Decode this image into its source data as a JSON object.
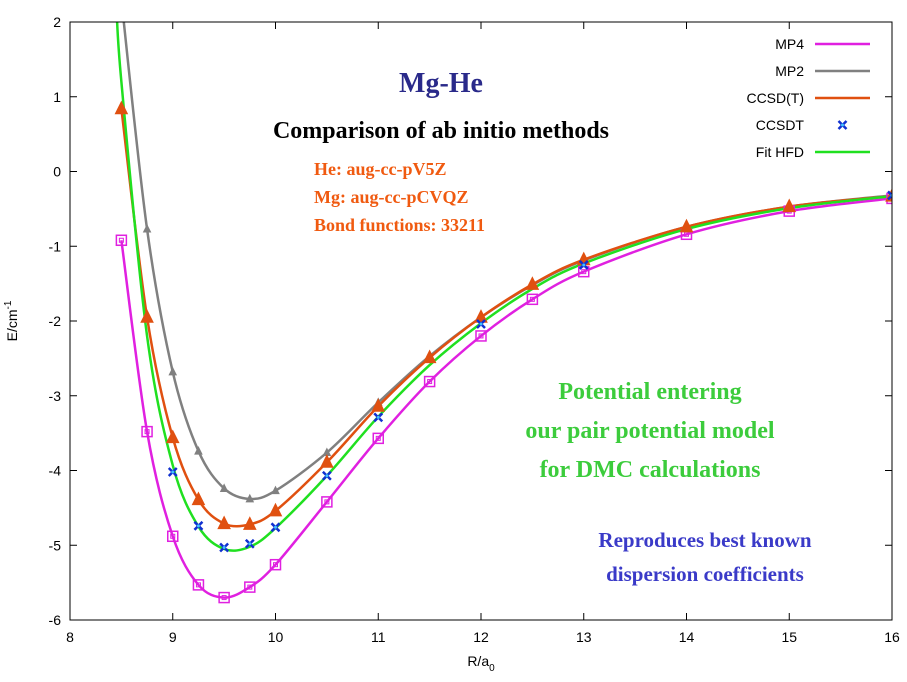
{
  "chart_data": {
    "type": "line",
    "title": "Mg-He",
    "subtitle": "Comparison of ab initio methods",
    "xlabel": "R/a",
    "xlabel_sub": "0",
    "ylabel": "E/cm",
    "ylabel_sup": "-1",
    "xlim": [
      8,
      16
    ],
    "ylim": [
      -6,
      2
    ],
    "xticks": [
      "8",
      "9",
      "10",
      "11",
      "12",
      "13",
      "14",
      "15",
      "16"
    ],
    "yticks": [
      "-6",
      "-5",
      "-4",
      "-3",
      "-2",
      "-1",
      "0",
      "1",
      "2"
    ],
    "legend_position": "top-right",
    "annotations": {
      "basis": [
        "He: aug-cc-pV5Z",
        "Mg: aug-cc-pCVQZ",
        "Bond functions: 33211"
      ],
      "green": [
        "Potential entering",
        "our pair potential model",
        "for DMC calculations"
      ],
      "blue": [
        "Reproduces best known",
        "dispersion coefficients"
      ]
    },
    "series": [
      {
        "name": "MP4",
        "color": "#e020e0",
        "marker": "square",
        "x": [
          8.5,
          8.75,
          9.0,
          9.25,
          9.5,
          9.75,
          10.0,
          10.5,
          11.0,
          11.5,
          12.0,
          12.5,
          13.0,
          14.0,
          15.0,
          16.0
        ],
        "y": [
          -0.92,
          -3.48,
          -4.88,
          -5.53,
          -5.7,
          -5.56,
          -5.26,
          -4.42,
          -3.57,
          -2.81,
          -2.2,
          -1.71,
          -1.34,
          -0.84,
          -0.53,
          -0.36
        ]
      },
      {
        "name": "MP2",
        "color": "#808080",
        "marker": "triangle-small",
        "x": [
          8.5,
          8.75,
          9.0,
          9.25,
          9.5,
          9.75,
          10.0,
          10.5,
          11.0,
          11.5,
          12.0,
          12.5,
          13.0,
          14.0,
          15.0,
          16.0
        ],
        "y": [
          2.3,
          -0.77,
          -2.68,
          -3.74,
          -4.24,
          -4.38,
          -4.27,
          -3.76,
          -3.09,
          -2.47,
          -1.95,
          -1.52,
          -1.19,
          -0.74,
          -0.47,
          -0.32
        ]
      },
      {
        "name": "CCSD(T)",
        "color": "#e05010",
        "marker": "triangle",
        "x": [
          8.5,
          8.75,
          9.0,
          9.25,
          9.5,
          9.75,
          10.0,
          10.5,
          11.0,
          11.5,
          12.0,
          12.5,
          13.0,
          14.0,
          15.0,
          16.0
        ],
        "y": [
          0.84,
          -1.95,
          -3.56,
          -4.39,
          -4.71,
          -4.72,
          -4.54,
          -3.89,
          -3.14,
          -2.49,
          -1.95,
          -1.51,
          -1.18,
          -0.74,
          -0.47,
          -0.33
        ]
      },
      {
        "name": "CCSDT",
        "color": "#1030d0",
        "marker": "x",
        "x": [
          9.0,
          9.25,
          9.5,
          9.75,
          10.0,
          10.5,
          11.0,
          12.0,
          13.0,
          16.0
        ],
        "y": [
          -4.02,
          -4.74,
          -5.03,
          -4.98,
          -4.76,
          -4.07,
          -3.29,
          -2.04,
          -1.25,
          -0.32
        ]
      },
      {
        "name": "Fit HFD",
        "color": "#20e020",
        "marker": "none",
        "x": [
          8.45,
          8.5,
          8.75,
          9.0,
          9.25,
          9.5,
          9.75,
          10.0,
          10.5,
          11.0,
          11.5,
          12.0,
          12.5,
          13.0,
          14.0,
          15.0,
          16.0
        ],
        "y": [
          2.3,
          1.2,
          -2.2,
          -3.93,
          -4.75,
          -5.05,
          -5.02,
          -4.77,
          -4.07,
          -3.28,
          -2.59,
          -2.03,
          -1.57,
          -1.23,
          -0.77,
          -0.49,
          -0.33
        ]
      }
    ]
  }
}
